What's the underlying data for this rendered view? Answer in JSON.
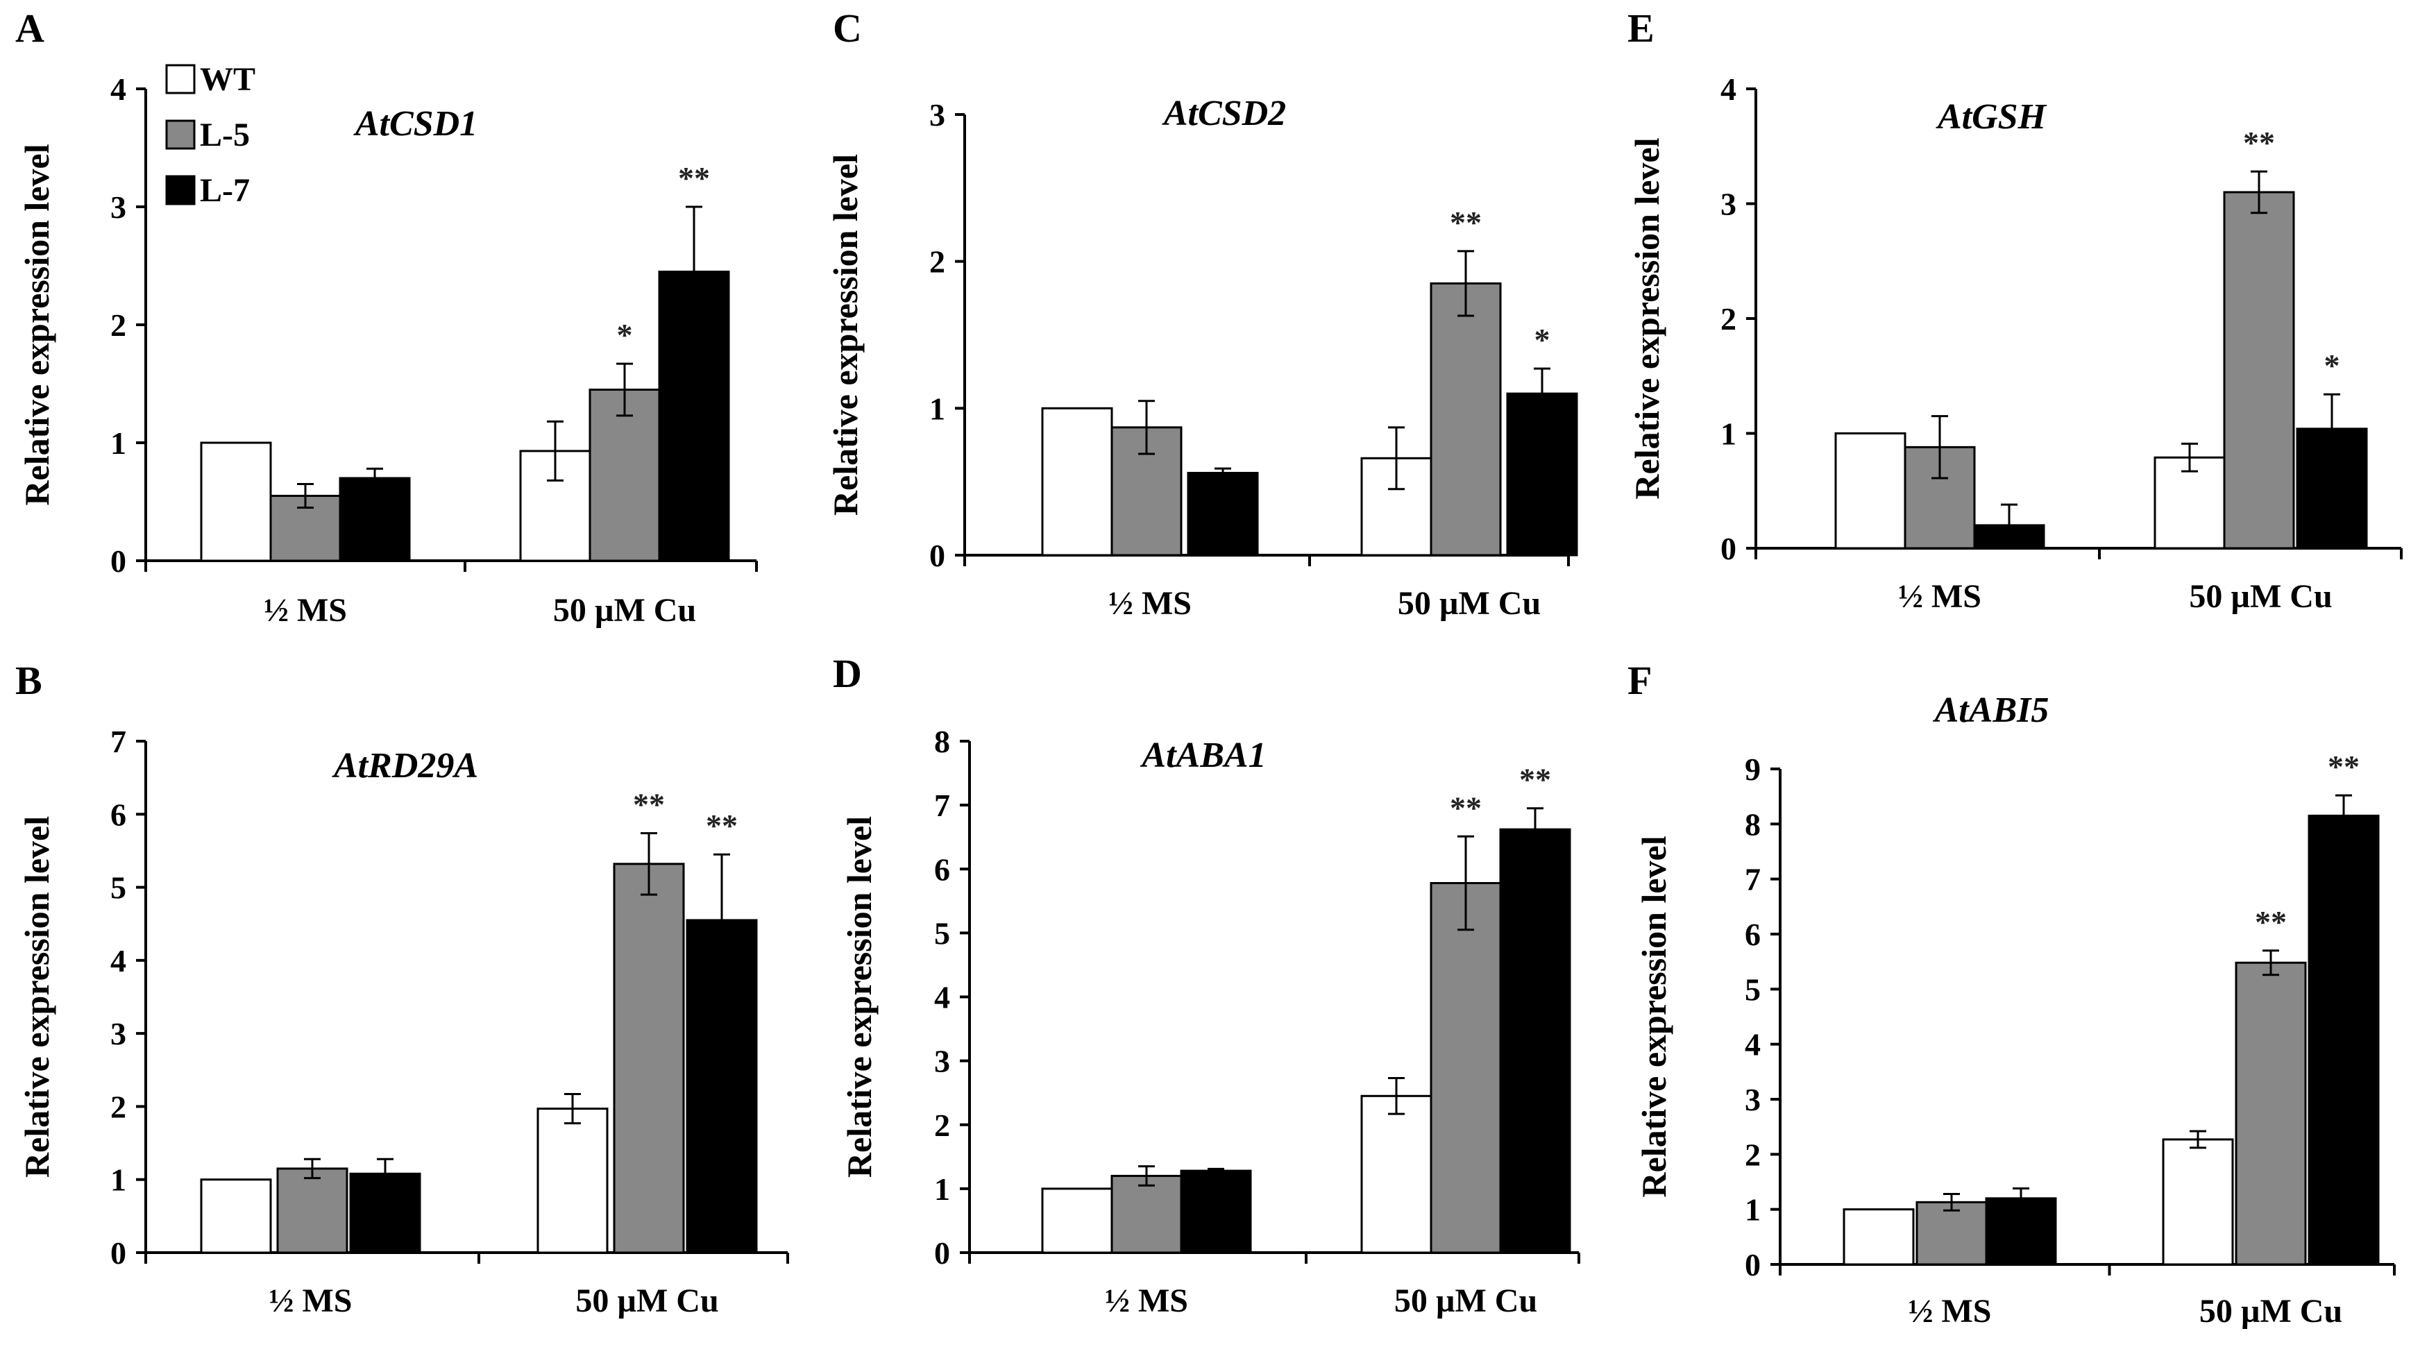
{
  "legend": {
    "items": [
      {
        "label": "WT",
        "color": "#ffffff"
      },
      {
        "label": "L-5",
        "color": "#888888"
      },
      {
        "label": "L-7",
        "color": "#000000"
      }
    ]
  },
  "chart_data": [
    {
      "type": "bar",
      "panel": "A",
      "title": "AtCSD1",
      "categories": [
        "½ MS",
        "50 µM Cu"
      ],
      "ylabel": "Relative  expression level",
      "ylim": [
        0,
        4
      ],
      "yticks": [
        "0",
        "1",
        "2",
        "3",
        "4"
      ],
      "series": [
        {
          "name": "WT",
          "values": [
            1.0,
            0.93
          ],
          "errors": [
            0,
            0.25
          ],
          "color": "#ffffff"
        },
        {
          "name": "L-5",
          "values": [
            0.55,
            1.45
          ],
          "errors": [
            0.1,
            0.22
          ],
          "color": "#888888"
        },
        {
          "name": "L-7",
          "values": [
            0.7,
            2.45
          ],
          "errors": [
            0.08,
            0.55
          ],
          "color": "#000000"
        }
      ],
      "significance": [
        [
          "",
          ""
        ],
        [
          "",
          "*"
        ],
        [
          "",
          "**"
        ]
      ]
    },
    {
      "type": "bar",
      "panel": "C",
      "title": "AtCSD2",
      "categories": [
        "½ MS",
        "50 µM Cu"
      ],
      "ylabel": "Relative  expression level",
      "ylim": [
        0,
        3
      ],
      "yticks": [
        "0",
        "1",
        "2",
        "3"
      ],
      "series": [
        {
          "name": "WT",
          "values": [
            1.0,
            0.66
          ],
          "errors": [
            0,
            0.21
          ],
          "color": "#ffffff"
        },
        {
          "name": "L-5",
          "values": [
            0.87,
            1.85
          ],
          "errors": [
            0.18,
            0.22
          ],
          "color": "#888888"
        },
        {
          "name": "L-7",
          "values": [
            0.56,
            1.1
          ],
          "errors": [
            0.03,
            0.17
          ],
          "color": "#000000"
        }
      ],
      "significance": [
        [
          "",
          ""
        ],
        [
          "",
          "**"
        ],
        [
          "",
          "*"
        ]
      ]
    },
    {
      "type": "bar",
      "panel": "E",
      "title": "AtGSH",
      "categories": [
        "½ MS",
        "50 µM Cu"
      ],
      "ylabel": "Relative  expression level",
      "ylim": [
        0,
        4
      ],
      "yticks": [
        "0",
        "1",
        "2",
        "3",
        "4"
      ],
      "series": [
        {
          "name": "WT",
          "values": [
            1.0,
            0.79
          ],
          "errors": [
            0,
            0.12
          ],
          "color": "#ffffff"
        },
        {
          "name": "L-5",
          "values": [
            0.88,
            3.1
          ],
          "errors": [
            0.27,
            0.18
          ],
          "color": "#888888"
        },
        {
          "name": "L-7",
          "values": [
            0.2,
            1.04
          ],
          "errors": [
            0.18,
            0.3
          ],
          "color": "#000000"
        }
      ],
      "significance": [
        [
          "",
          ""
        ],
        [
          "",
          "**"
        ],
        [
          "",
          "*"
        ]
      ]
    },
    {
      "type": "bar",
      "panel": "B",
      "title": "AtRD29A",
      "categories": [
        "½ MS",
        "50 µM Cu"
      ],
      "ylabel": "Relative expression level",
      "ylim": [
        0,
        7
      ],
      "yticks": [
        "0",
        "1",
        "2",
        "3",
        "4",
        "5",
        "6",
        "7"
      ],
      "series": [
        {
          "name": "WT",
          "values": [
            1.0,
            1.97
          ],
          "errors": [
            0,
            0.2
          ],
          "color": "#ffffff"
        },
        {
          "name": "L-5",
          "values": [
            1.15,
            5.32
          ],
          "errors": [
            0.13,
            0.42
          ],
          "color": "#888888"
        },
        {
          "name": "L-7",
          "values": [
            1.08,
            4.55
          ],
          "errors": [
            0.2,
            0.9
          ],
          "color": "#000000"
        }
      ],
      "significance": [
        [
          "",
          ""
        ],
        [
          "",
          "**"
        ],
        [
          "",
          "**"
        ]
      ]
    },
    {
      "type": "bar",
      "panel": "D",
      "title": "AtABA1",
      "categories": [
        "½ MS",
        "50 µM Cu"
      ],
      "ylabel": "Relative expression level",
      "ylim": [
        0,
        8
      ],
      "yticks": [
        "0",
        "1",
        "2",
        "3",
        "4",
        "5",
        "6",
        "7",
        "8"
      ],
      "series": [
        {
          "name": "WT",
          "values": [
            1.0,
            2.45
          ],
          "errors": [
            0,
            0.28
          ],
          "color": "#ffffff"
        },
        {
          "name": "L-5",
          "values": [
            1.2,
            5.78
          ],
          "errors": [
            0.15,
            0.73
          ],
          "color": "#888888"
        },
        {
          "name": "L-7",
          "values": [
            1.28,
            6.62
          ],
          "errors": [
            0.03,
            0.33
          ],
          "color": "#000000"
        }
      ],
      "significance": [
        [
          "",
          ""
        ],
        [
          "",
          "**"
        ],
        [
          "",
          "**"
        ]
      ]
    },
    {
      "type": "bar",
      "panel": "F",
      "title": "AtABI5",
      "categories": [
        "½ MS",
        "50 µM Cu"
      ],
      "ylabel": "Relative expression level",
      "ylim": [
        0,
        9
      ],
      "yticks": [
        "0",
        "1",
        "2",
        "3",
        "4",
        "5",
        "6",
        "7",
        "8",
        "9"
      ],
      "series": [
        {
          "name": "WT",
          "values": [
            1.0,
            2.27
          ],
          "errors": [
            0,
            0.15
          ],
          "color": "#ffffff"
        },
        {
          "name": "L-5",
          "values": [
            1.13,
            5.48
          ],
          "errors": [
            0.15,
            0.22
          ],
          "color": "#888888"
        },
        {
          "name": "L-7",
          "values": [
            1.2,
            8.15
          ],
          "errors": [
            0.18,
            0.37
          ],
          "color": "#000000"
        }
      ],
      "significance": [
        [
          "",
          ""
        ],
        [
          "",
          "**"
        ],
        [
          "",
          "**"
        ]
      ]
    }
  ]
}
